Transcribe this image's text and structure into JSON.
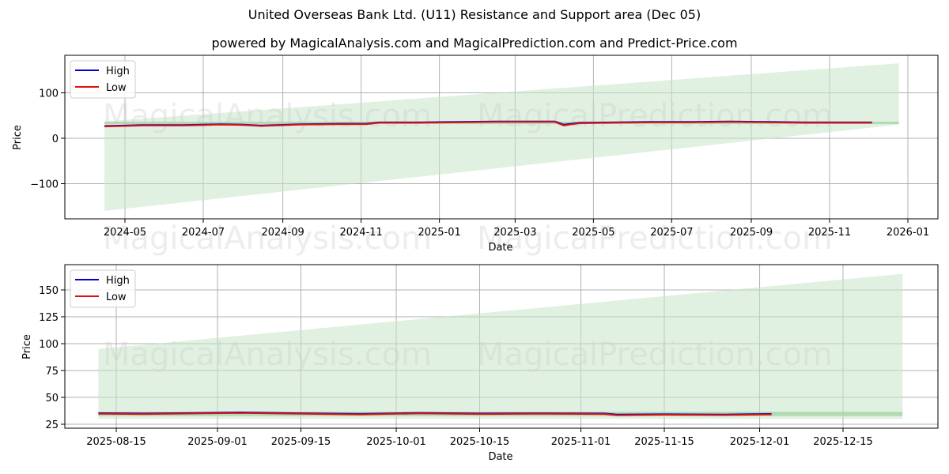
{
  "header": {
    "title": "United Overseas Bank Ltd. (U11) Resistance and Support area (Dec 05)",
    "subtitle": "powered by MagicalAnalysis.com and MagicalPrediction.com and Predict-Price.com"
  },
  "watermarks": [
    "MagicalAnalysis.com",
    "MagicalPrediction.com"
  ],
  "colors": {
    "high": "#0000cc",
    "low": "#dd1111",
    "band": "#c8e6c9",
    "band_edge": "#a5d6a7",
    "grid": "#b0b0b0"
  },
  "chart_data": [
    {
      "type": "line",
      "title": "Full history",
      "xlabel": "Date",
      "ylabel": "Price",
      "ylim": [
        -180,
        180
      ],
      "yticks": [
        -100,
        0,
        100
      ],
      "ytick_labels": [
        "−100",
        "0",
        "100"
      ],
      "xtick_labels": [
        "2024-05",
        "2024-07",
        "2024-09",
        "2024-11",
        "2025-01",
        "2025-03",
        "2025-05",
        "2025-07",
        "2025-09",
        "2025-11",
        "2026-01"
      ],
      "grid": true,
      "legend": {
        "position": "upper left",
        "entries": [
          "High",
          "Low"
        ]
      },
      "series": [
        {
          "name": "High",
          "x": [
            "2024-04-15",
            "2024-05-15",
            "2024-06-15",
            "2024-07-15",
            "2024-08-01",
            "2024-08-15",
            "2024-09-15",
            "2024-10-15",
            "2024-11-05",
            "2024-11-15",
            "2024-12-15",
            "2025-01-15",
            "2025-02-15",
            "2025-03-15",
            "2025-04-01",
            "2025-04-08",
            "2025-04-20",
            "2025-05-15",
            "2025-06-15",
            "2025-07-15",
            "2025-08-15",
            "2025-09-15",
            "2025-10-15",
            "2025-11-15",
            "2025-12-04"
          ],
          "values": [
            27,
            29,
            29,
            31,
            30,
            28,
            31,
            32,
            32,
            35,
            35,
            36,
            37,
            37,
            37,
            30,
            34,
            35,
            36,
            36,
            37,
            36,
            35,
            35,
            35
          ]
        },
        {
          "name": "Low",
          "x": [
            "2024-04-15",
            "2024-05-15",
            "2024-06-15",
            "2024-07-15",
            "2024-08-01",
            "2024-08-15",
            "2024-09-15",
            "2024-10-15",
            "2024-11-05",
            "2024-11-15",
            "2024-12-15",
            "2025-01-15",
            "2025-02-15",
            "2025-03-15",
            "2025-04-01",
            "2025-04-08",
            "2025-04-20",
            "2025-05-15",
            "2025-06-15",
            "2025-07-15",
            "2025-08-15",
            "2025-09-15",
            "2025-10-15",
            "2025-11-15",
            "2025-12-04"
          ],
          "values": [
            26,
            28,
            28,
            30,
            29,
            27,
            30,
            31,
            31,
            34,
            34,
            35,
            36,
            36,
            36,
            28,
            33,
            34,
            35,
            35,
            36,
            35,
            34,
            34,
            34
          ]
        }
      ],
      "band": {
        "x_start": "2024-04-15",
        "x_end": "2025-12-25",
        "upper_start": 37,
        "upper_end": 165,
        "lower_start": -160,
        "lower_end": 30
      }
    },
    {
      "type": "line",
      "title": "Recent (zoom)",
      "xlabel": "Date",
      "ylabel": "Price",
      "ylim": [
        21,
        170
      ],
      "yticks": [
        25,
        50,
        75,
        100,
        125,
        150
      ],
      "ytick_labels": [
        "25",
        "50",
        "75",
        "100",
        "125",
        "150"
      ],
      "xtick_labels": [
        "2025-08-15",
        "2025-09-01",
        "2025-09-15",
        "2025-10-01",
        "2025-10-15",
        "2025-11-01",
        "2025-11-15",
        "2025-12-01",
        "2025-12-15"
      ],
      "grid": true,
      "legend": {
        "position": "upper left",
        "entries": [
          "High",
          "Low"
        ]
      },
      "series": [
        {
          "name": "High",
          "x": [
            "2025-08-12",
            "2025-08-20",
            "2025-08-28",
            "2025-09-05",
            "2025-09-15",
            "2025-09-25",
            "2025-10-05",
            "2025-10-15",
            "2025-10-25",
            "2025-11-05",
            "2025-11-07",
            "2025-11-15",
            "2025-11-25",
            "2025-12-03"
          ],
          "values": [
            35.3,
            35.0,
            35.5,
            36.0,
            35.2,
            34.6,
            35.6,
            35.0,
            35.2,
            35.0,
            34.0,
            34.3,
            34.0,
            34.6
          ]
        },
        {
          "name": "Low",
          "x": [
            "2025-08-12",
            "2025-08-20",
            "2025-08-28",
            "2025-09-05",
            "2025-09-15",
            "2025-09-25",
            "2025-10-05",
            "2025-10-15",
            "2025-10-25",
            "2025-11-05",
            "2025-11-07",
            "2025-11-15",
            "2025-11-25",
            "2025-12-03"
          ],
          "values": [
            34.8,
            34.5,
            35.0,
            35.5,
            34.7,
            34.1,
            35.1,
            34.5,
            34.7,
            34.5,
            33.4,
            33.8,
            33.5,
            34.1
          ]
        }
      ],
      "band": {
        "x_start": "2025-08-12",
        "x_end": "2025-12-25",
        "upper_start": 95,
        "upper_end": 165,
        "lower_start": 30,
        "lower_end": 30
      }
    }
  ]
}
